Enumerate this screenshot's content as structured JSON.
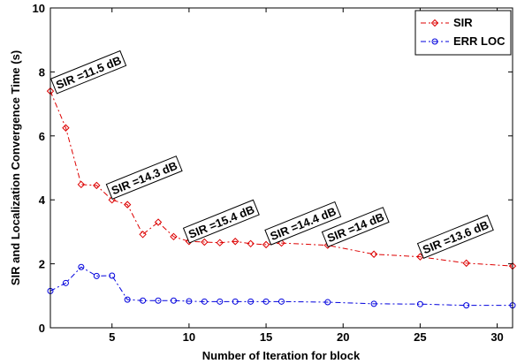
{
  "chart_data": {
    "type": "line",
    "title": "",
    "xlabel": "Number of Iteration for block",
    "ylabel": "SIR and Localization Convergence Time (s)",
    "xlim": [
      1,
      31
    ],
    "ylim": [
      0,
      10
    ],
    "xticks": [
      5,
      10,
      15,
      20,
      25,
      30
    ],
    "yticks": [
      0,
      2,
      4,
      6,
      8,
      10
    ],
    "grid": false,
    "legend_position": "top-right",
    "series": [
      {
        "name": "SIR",
        "color": "#dd0000",
        "marker": "diamond",
        "linestyle": "dash-dot",
        "x": [
          1,
          2,
          3,
          4,
          5,
          6,
          7,
          8,
          9,
          10,
          11,
          12,
          13,
          14,
          15,
          16,
          19,
          22,
          25,
          28,
          31
        ],
        "y": [
          7.4,
          6.25,
          4.48,
          4.45,
          4.0,
          3.85,
          2.92,
          3.3,
          2.85,
          2.7,
          2.68,
          2.66,
          2.7,
          2.63,
          2.6,
          2.65,
          2.58,
          2.3,
          2.22,
          2.02,
          1.93
        ]
      },
      {
        "name": "ERR LOC",
        "color": "#0000dd",
        "marker": "circle",
        "linestyle": "dash-dot",
        "x": [
          1,
          2,
          3,
          4,
          5,
          6,
          7,
          8,
          9,
          10,
          11,
          12,
          13,
          14,
          15,
          16,
          19,
          22,
          25,
          28,
          31
        ],
        "y": [
          1.15,
          1.4,
          1.9,
          1.62,
          1.63,
          0.88,
          0.85,
          0.85,
          0.85,
          0.83,
          0.82,
          0.82,
          0.82,
          0.82,
          0.82,
          0.82,
          0.8,
          0.75,
          0.74,
          0.7,
          0.7
        ]
      }
    ],
    "annotations": [
      {
        "text": "SIR =11.5 dB",
        "x": 1.4,
        "y": 7.35
      },
      {
        "text": "SIR =14.3 dB",
        "x": 5.0,
        "y": 4.05
      },
      {
        "text": "SIR =15.4 dB",
        "x": 10.0,
        "y": 2.68
      },
      {
        "text": "SIR =14.4 dB",
        "x": 15.3,
        "y": 2.62
      },
      {
        "text": "SIR =14 dB",
        "x": 19.0,
        "y": 2.56
      },
      {
        "text": "SIR =13.6 dB",
        "x": 25.2,
        "y": 2.2
      }
    ]
  }
}
